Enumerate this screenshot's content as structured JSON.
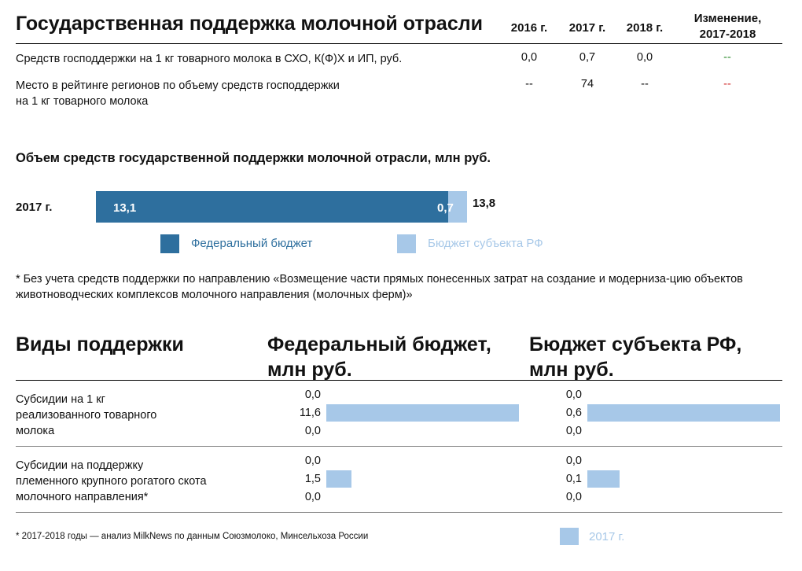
{
  "header": {
    "title": "Государственная поддержка молочной отрасли",
    "years": [
      "2016 г.",
      "2017 г.",
      "2018 г."
    ],
    "change_label_1": "Изменение,",
    "change_label_2": "2017-2018"
  },
  "rows": [
    {
      "label_lines": [
        "Средств господдержки на 1 кг товарного молока в СХО, К(Ф)Х и ИП, руб."
      ],
      "values": [
        "0,0",
        "0,7",
        "0,0"
      ],
      "change": "--",
      "change_color": "#2e8b2e"
    },
    {
      "label_lines": [
        "Место в рейтинге регионов по объему средств господдержки",
        "на 1 кг товарного молока"
      ],
      "values": [
        "--",
        "74",
        "--"
      ],
      "change": "--",
      "change_color": "#d03030"
    }
  ],
  "volume_chart": {
    "title": "Объем средств государственной поддержки молочной отрасли, млн руб.",
    "bar_label": "2017 г.",
    "federal_value": 13.1,
    "federal_label": "13,1",
    "regional_value": 0.7,
    "regional_label": "0,7",
    "total_label": "13,8",
    "legend": [
      "Федеральный бюджет",
      "Бюджет субъекта РФ"
    ],
    "colors": {
      "federal": "#2e6f9e",
      "regional": "#a7c8e8"
    }
  },
  "note": "* Без учета средств поддержки по направлению «Возмещение части прямых понесенных затрат на создание и модерниза-цию объектов животноводческих комплексов молочного направления (молочных ферм)»",
  "support": {
    "col_kinds": "Виды поддержки",
    "col_fed_1": "Федеральный бюджет,",
    "col_fed_2": "млн руб.",
    "col_reg_1": "Бюджет субъекта РФ,",
    "col_reg_2": "млн руб.",
    "items": [
      {
        "label_lines": [
          "Субсидии на 1 кг",
          "реализованного товарного",
          "молока"
        ],
        "fed": [
          {
            "v": 0.0,
            "t": "0,0"
          },
          {
            "v": 11.6,
            "t": "11,6"
          },
          {
            "v": 0.0,
            "t": "0,0"
          }
        ],
        "reg": [
          {
            "v": 0.0,
            "t": "0,0"
          },
          {
            "v": 0.6,
            "t": "0,6"
          },
          {
            "v": 0.0,
            "t": "0,0"
          }
        ]
      },
      {
        "label_lines": [
          "Субсидии на поддержку",
          "племенного крупного рогатого скота",
          "молочного направления*"
        ],
        "fed": [
          {
            "v": 0.0,
            "t": "0,0"
          },
          {
            "v": 1.5,
            "t": "1,5"
          },
          {
            "v": 0.0,
            "t": "0,0"
          }
        ],
        "reg": [
          {
            "v": 0.0,
            "t": "0,0"
          },
          {
            "v": 0.1,
            "t": "0,1"
          },
          {
            "v": 0.0,
            "t": "0,0"
          }
        ]
      }
    ]
  },
  "footer": {
    "source": "* 2017-2018 годы — анализ MilkNews по данным Союзмолоко, Минсельхоза России",
    "legend": "2017 г."
  },
  "chart_data": [
    {
      "type": "bar",
      "title": "Объем средств государственной поддержки молочной отрасли, млн руб.",
      "categories": [
        "2017 г."
      ],
      "series": [
        {
          "name": "Федеральный бюджет",
          "values": [
            13.1
          ]
        },
        {
          "name": "Бюджет субъекта РФ",
          "values": [
            0.7
          ]
        }
      ],
      "stacked": true,
      "total": [
        13.8
      ]
    },
    {
      "type": "bar",
      "title": "Федеральный бюджет, млн руб.",
      "categories": [
        "Субсидии на 1 кг реализованного товарного молока",
        "Субсидии на поддержку племенного крупного рогатого скота молочного направления*"
      ],
      "series": [
        {
          "name": "2017 г.",
          "values": [
            11.6,
            1.5
          ]
        }
      ]
    },
    {
      "type": "bar",
      "title": "Бюджет субъекта РФ, млн руб.",
      "categories": [
        "Субсидии на 1 кг реализованного товарного молока",
        "Субсидии на поддержку племенного крупного рогатого скота молочного направления*"
      ],
      "series": [
        {
          "name": "2017 г.",
          "values": [
            0.6,
            0.1
          ]
        }
      ]
    }
  ]
}
